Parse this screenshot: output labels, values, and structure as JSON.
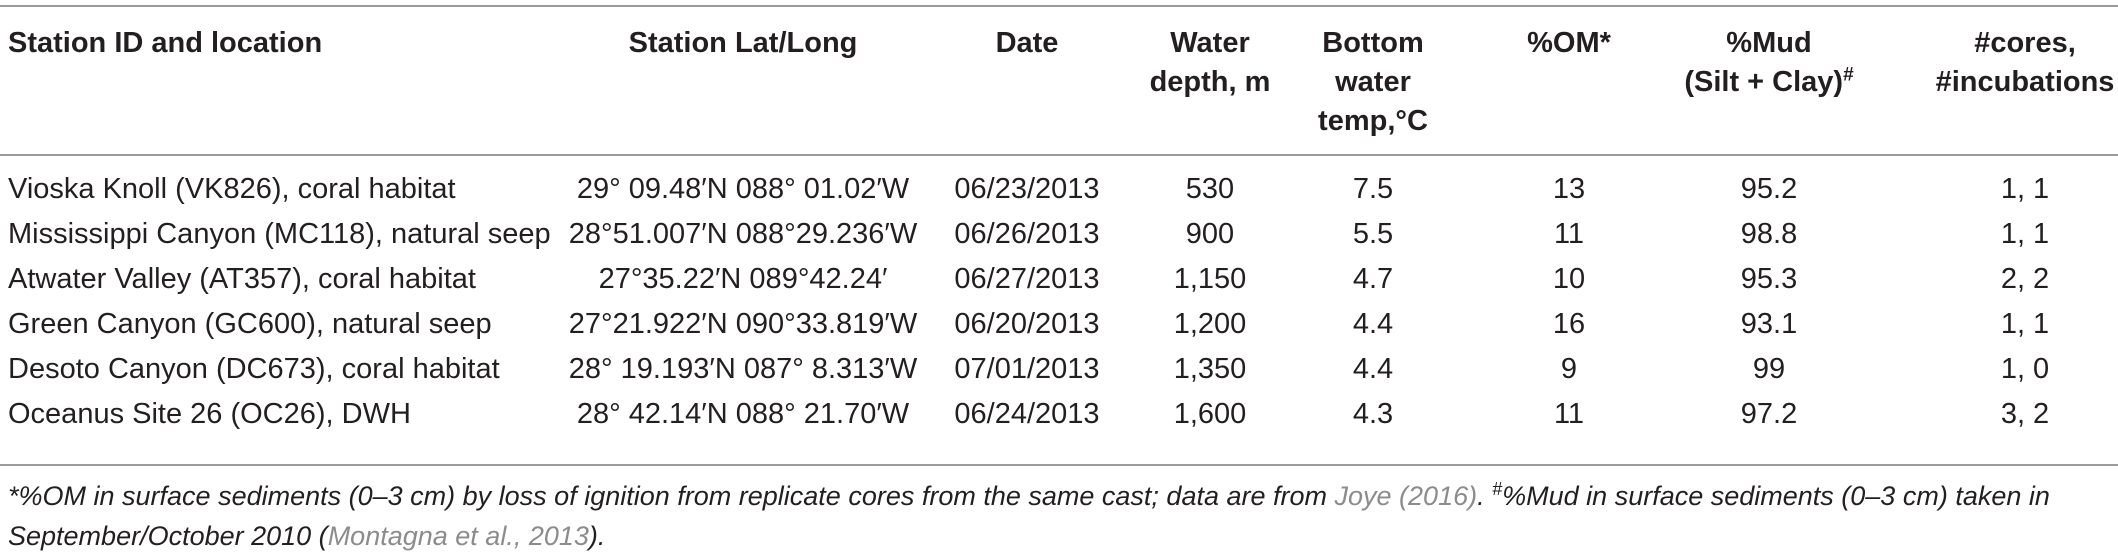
{
  "table": {
    "headers": {
      "station": "Station ID and location",
      "latlong": "Station Lat/Long",
      "date": "Date",
      "depth_l1": "Water",
      "depth_l2": "depth, m",
      "temp_l1": "Bottom",
      "temp_l2": "water",
      "temp_l3": "temp,°C",
      "om": "%OM*",
      "mud_l1": "%Mud",
      "mud_l2": "(Silt + Clay)",
      "mud_sup": "#",
      "cores_l1": "#cores,",
      "cores_l2": "#incubations"
    },
    "rows": [
      {
        "station": "Vioska Knoll (VK826), coral habitat",
        "latlong": "29° 09.48′N 088° 01.02′W",
        "date": "06/23/2013",
        "depth": "530",
        "temp": "7.5",
        "om": "13",
        "mud": "95.2",
        "cores": "1, 1"
      },
      {
        "station": "Mississippi Canyon (MC118), natural seep",
        "latlong": "28°51.007′N 088°29.236′W",
        "date": "06/26/2013",
        "depth": "900",
        "temp": "5.5",
        "om": "11",
        "mud": "98.8",
        "cores": "1, 1"
      },
      {
        "station": "Atwater Valley (AT357), coral habitat",
        "latlong": "27°35.22′N 089°42.24′",
        "date": "06/27/2013",
        "depth": "1,150",
        "temp": "4.7",
        "om": "10",
        "mud": "95.3",
        "cores": "2, 2"
      },
      {
        "station": "Green Canyon (GC600), natural seep",
        "latlong": "27°21.922′N 090°33.819′W",
        "date": "06/20/2013",
        "depth": "1,200",
        "temp": "4.4",
        "om": "16",
        "mud": "93.1",
        "cores": "1, 1"
      },
      {
        "station": "Desoto Canyon (DC673), coral habitat",
        "latlong": "28° 19.193′N 087° 8.313′W",
        "date": "07/01/2013",
        "depth": "1,350",
        "temp": "4.4",
        "om": "9",
        "mud": "99",
        "cores": "1, 0"
      },
      {
        "station": "Oceanus Site 26 (OC26), DWH",
        "latlong": "28° 42.14′N 088° 21.70′W",
        "date": "06/24/2013",
        "depth": "1,600",
        "temp": "4.3",
        "om": "11",
        "mud": "97.2",
        "cores": "3, 2"
      }
    ]
  },
  "footnote": {
    "part1": "*%OM in surface sediments (0–3 cm) by loss of ignition from replicate cores from the same cast; data are from ",
    "ref1": "Joye (2016)",
    "part2": ". ",
    "sup": "#",
    "part3": "%Mud in surface sediments (0–3 cm) taken in September/October 2010 (",
    "ref2": "Montagna et al., 2013",
    "part4": ")."
  },
  "colors": {
    "text": "#231f20",
    "rule": "#9a9a9a",
    "reference_link": "#8c8c8c"
  }
}
